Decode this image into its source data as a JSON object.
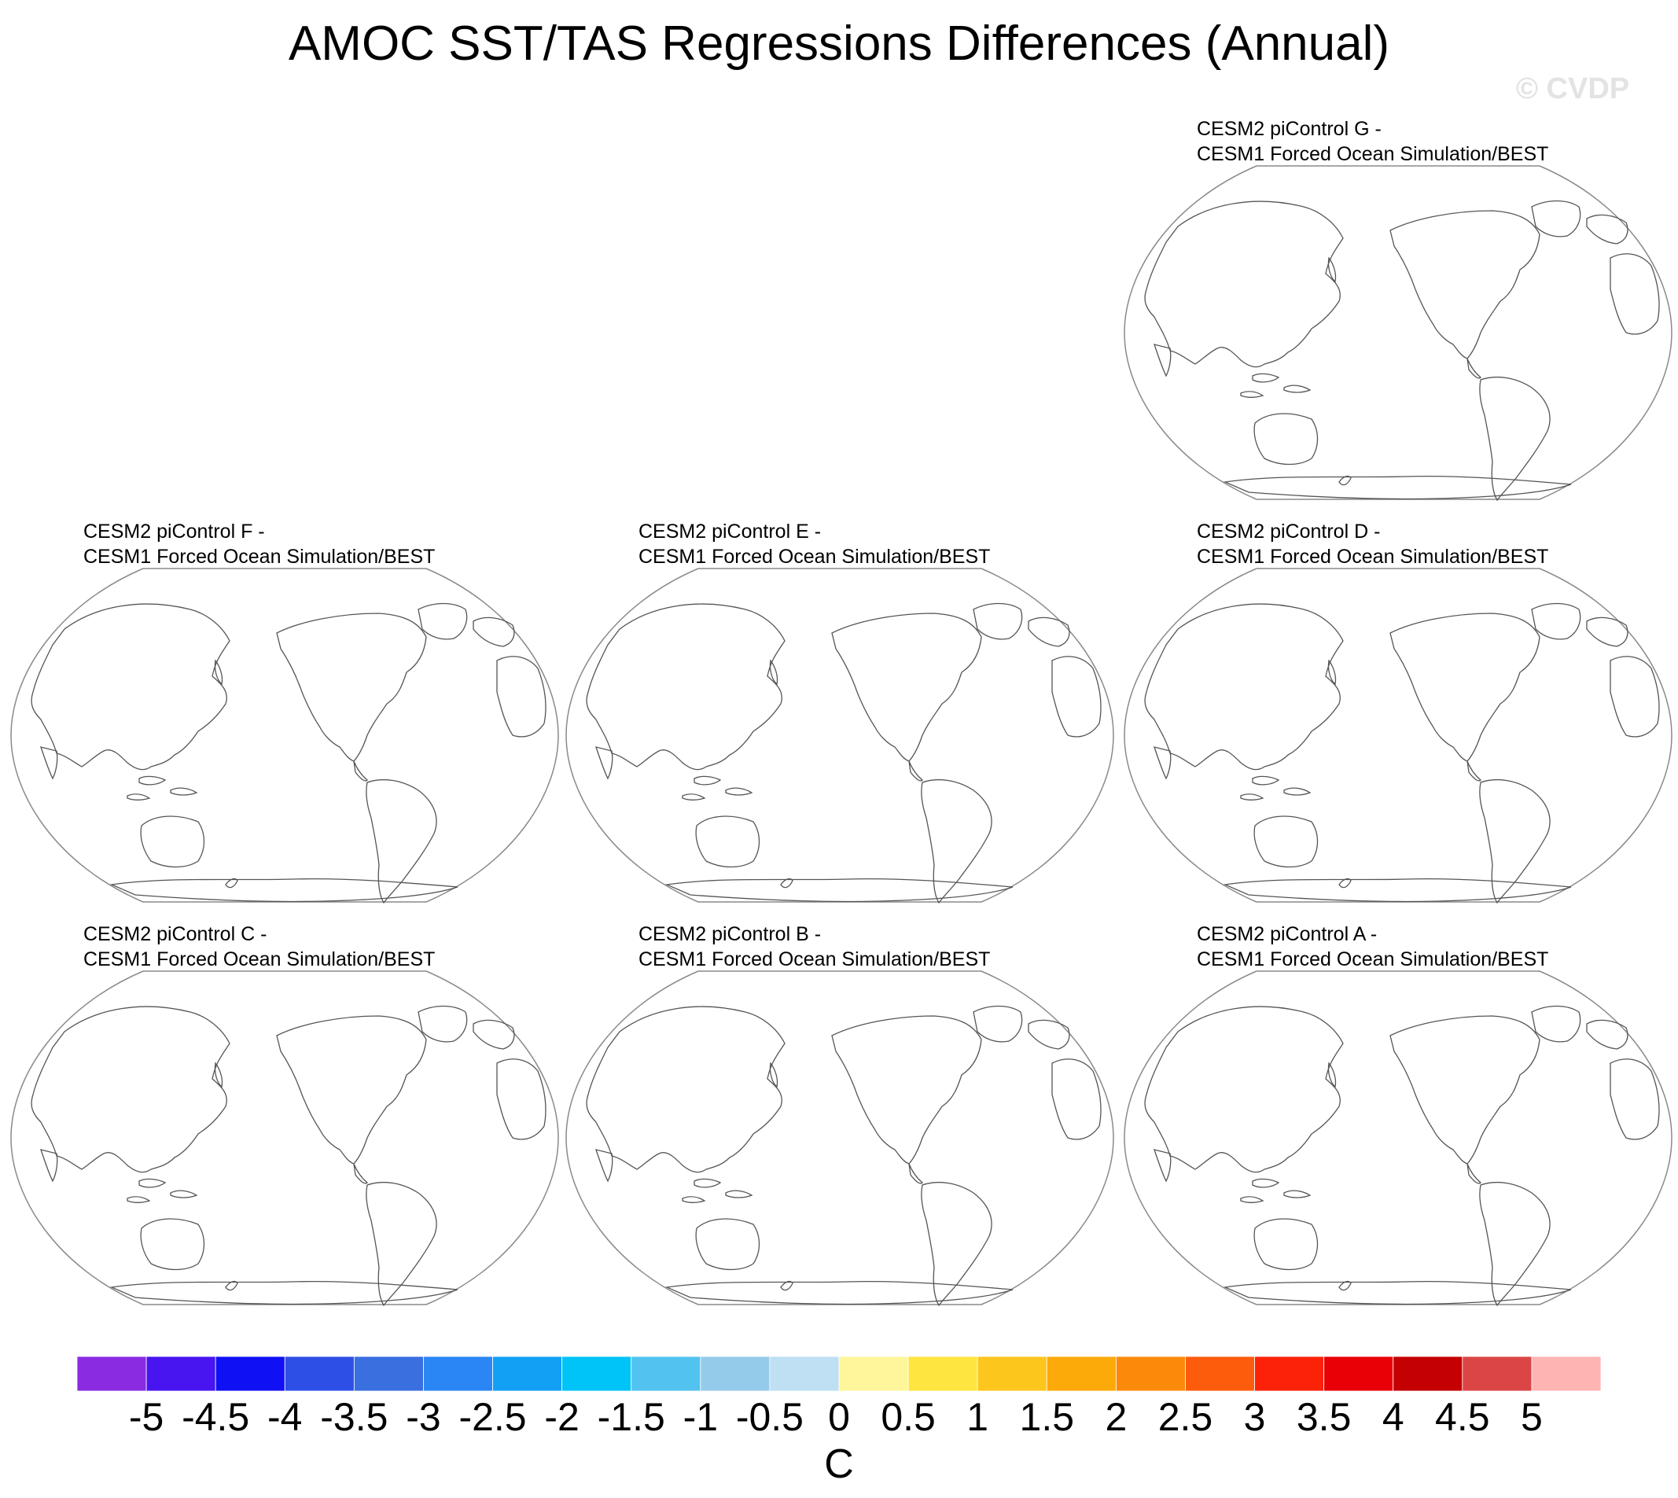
{
  "chart_data": {
    "type": "heatmap",
    "title": "AMOC SST/TAS Regressions Differences (Annual)",
    "watermark": "© CVDP",
    "projection": "Robinson, Pacific-centered",
    "panels": [
      {
        "line1": "CESM2 piControl G -",
        "line2": "CESM1 Forced Ocean Simulation/BEST",
        "fill": "none"
      },
      {
        "line1": "CESM2 piControl F -",
        "line2": "CESM1 Forced Ocean Simulation/BEST",
        "fill": "none"
      },
      {
        "line1": "CESM2 piControl E -",
        "line2": "CESM1 Forced Ocean Simulation/BEST",
        "fill": "none"
      },
      {
        "line1": "CESM2 piControl D -",
        "line2": "CESM1 Forced Ocean Simulation/BEST",
        "fill": "none"
      },
      {
        "line1": "CESM2 piControl C -",
        "line2": "CESM1 Forced Ocean Simulation/BEST",
        "fill": "none"
      },
      {
        "line1": "CESM2 piControl B -",
        "line2": "CESM1 Forced Ocean Simulation/BEST",
        "fill": "none"
      },
      {
        "line1": "CESM2 piControl A -",
        "line2": "CESM1 Forced Ocean Simulation/BEST",
        "fill": "none"
      }
    ],
    "colorbar": {
      "units": "C",
      "levels": [
        -5,
        -4.5,
        -4,
        -3.5,
        -3,
        -2.5,
        -2,
        -1.5,
        -1,
        -0.5,
        0,
        0.5,
        1,
        1.5,
        2,
        2.5,
        3,
        3.5,
        4,
        4.5,
        5
      ],
      "tick_labels": [
        "-5",
        "-4.5",
        "-4",
        "-3.5",
        "-3",
        "-2.5",
        "-2",
        "-1.5",
        "-1",
        "-0.5",
        "0",
        "0.5",
        "1",
        "1.5",
        "2",
        "2.5",
        "3",
        "3.5",
        "4",
        "4.5",
        "5"
      ],
      "colors": [
        "#8a2be2",
        "#4814f0",
        "#1010f5",
        "#2e4fe6",
        "#3a6fe0",
        "#2a86f5",
        "#12a0f5",
        "#00c3f7",
        "#52c3f0",
        "#95cbea",
        "#bfdff3",
        "#fff59b",
        "#ffe540",
        "#fdc61d",
        "#fca90a",
        "#fc8a0a",
        "#fc5c0c",
        "#fc2208",
        "#e80006",
        "#c50002",
        "#dc4545",
        "#ffb4b4"
      ]
    }
  }
}
